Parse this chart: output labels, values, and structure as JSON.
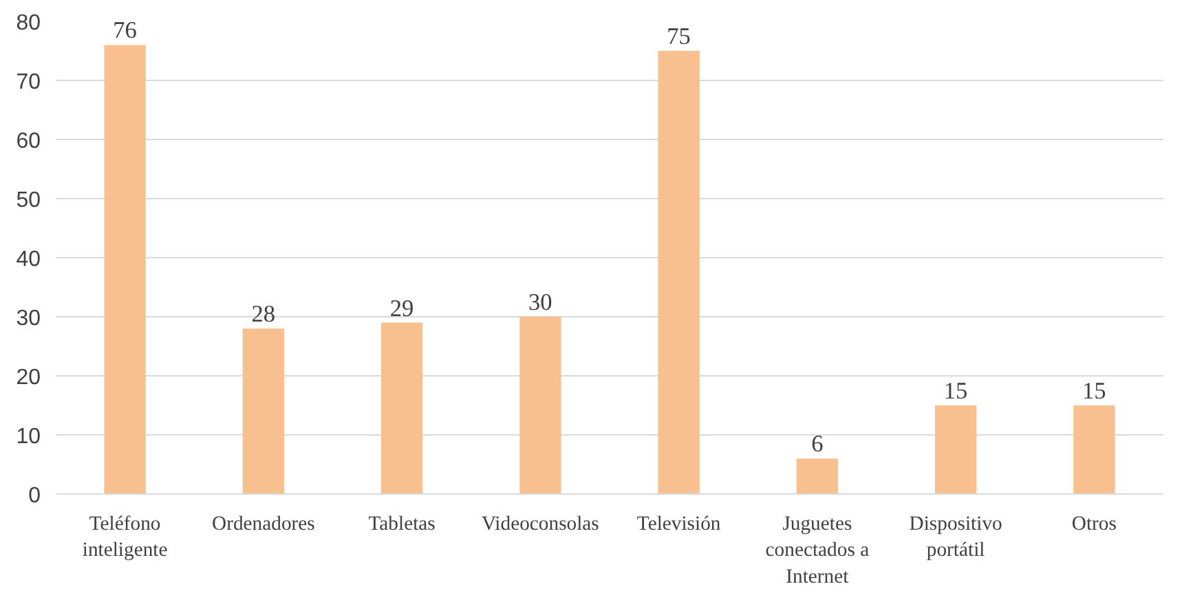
{
  "chart_data": {
    "type": "bar",
    "categories": [
      "Teléfono inteligente",
      "Ordenadores",
      "Tabletas",
      "Videoconsolas",
      "Televisión",
      "Juguetes conectados a Internet",
      "Dispositivo portátil",
      "Otros"
    ],
    "values": [
      76,
      28,
      29,
      30,
      75,
      6,
      15,
      15
    ],
    "color": "#f8c08f",
    "ylim": [
      0,
      80
    ],
    "yticks": [
      0,
      10,
      20,
      30,
      40,
      50,
      60,
      70,
      80
    ],
    "grid": "y",
    "data_labels": true
  }
}
